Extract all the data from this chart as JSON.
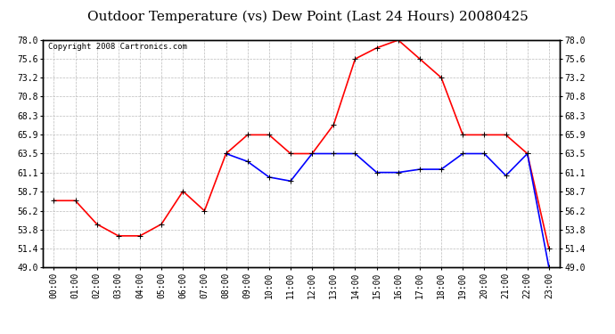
{
  "title": "Outdoor Temperature (vs) Dew Point (Last 24 Hours) 20080425",
  "copyright": "Copyright 2008 Cartronics.com",
  "x_labels": [
    "00:00",
    "01:00",
    "02:00",
    "03:00",
    "04:00",
    "05:00",
    "06:00",
    "07:00",
    "08:00",
    "09:00",
    "10:00",
    "11:00",
    "12:00",
    "13:00",
    "14:00",
    "15:00",
    "16:00",
    "17:00",
    "18:00",
    "19:00",
    "20:00",
    "21:00",
    "22:00",
    "23:00"
  ],
  "temp_data": [
    57.5,
    57.5,
    54.5,
    53.0,
    53.0,
    54.5,
    58.7,
    56.2,
    63.5,
    65.9,
    65.9,
    63.5,
    63.5,
    67.2,
    75.6,
    77.0,
    78.0,
    75.6,
    73.2,
    65.9,
    65.9,
    65.9,
    63.5,
    51.4
  ],
  "dew_data": [
    null,
    null,
    null,
    null,
    null,
    null,
    null,
    null,
    63.5,
    62.5,
    60.5,
    60.0,
    63.5,
    63.5,
    63.5,
    61.1,
    61.1,
    61.5,
    61.5,
    63.5,
    63.5,
    60.7,
    63.5,
    49.0
  ],
  "temp_color": "#FF0000",
  "dew_color": "#0000FF",
  "bg_color": "#FFFFFF",
  "plot_bg_color": "#FFFFFF",
  "grid_color": "#BBBBBB",
  "ylim": [
    49.0,
    78.0
  ],
  "yticks": [
    49.0,
    51.4,
    53.8,
    56.2,
    58.7,
    61.1,
    63.5,
    65.9,
    68.3,
    70.8,
    73.2,
    75.6,
    78.0
  ],
  "title_fontsize": 11,
  "copyright_fontsize": 6.5,
  "tick_fontsize": 7,
  "marker": "+",
  "marker_size": 5,
  "linewidth": 1.2
}
